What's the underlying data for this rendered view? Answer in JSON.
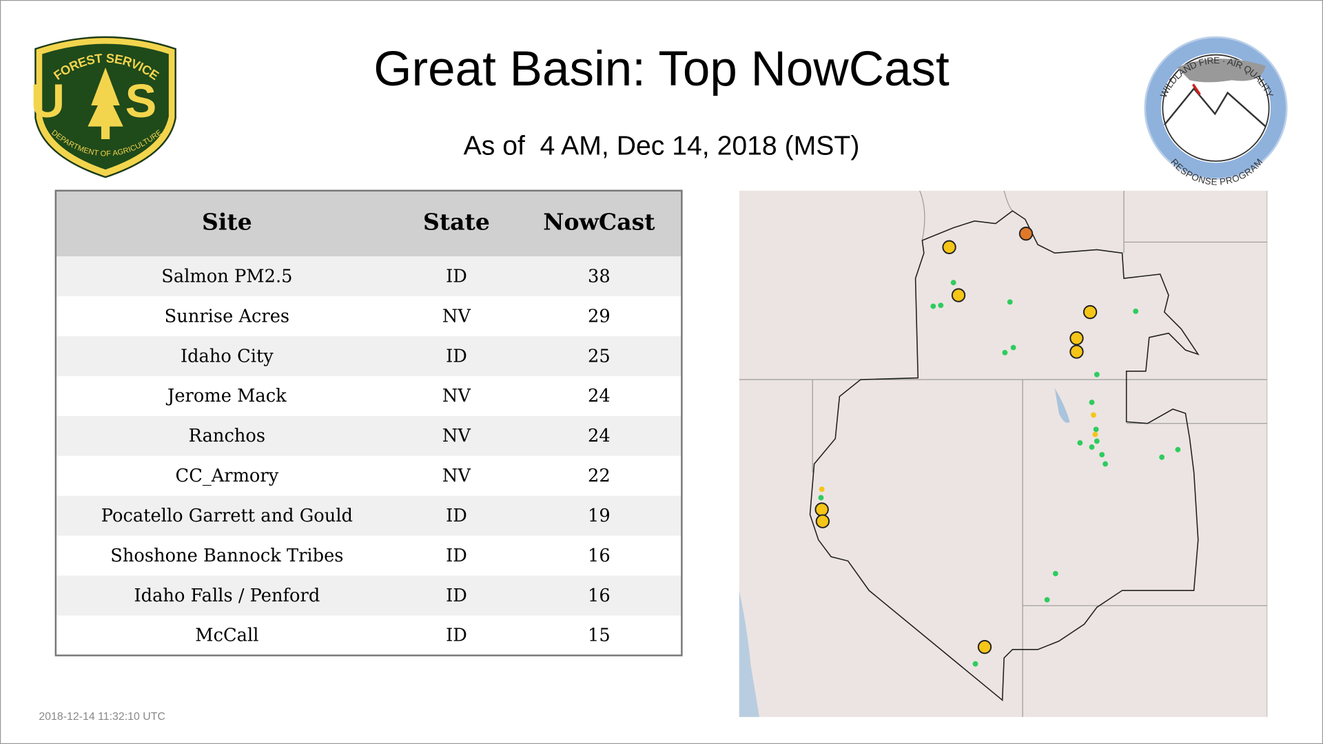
{
  "header": {
    "title": "Great Basin: Top NowCast",
    "subtitle": "As of  4 AM, Dec 14, 2018 (MST)"
  },
  "logos": {
    "forest_service": {
      "top": "FOREST SERVICE",
      "letters": "U S",
      "bottom": "DEPARTMENT OF AGRICULTURE"
    },
    "wildland": {
      "top": "WILDLAND FIRE · AIR QUALITY",
      "bottom": "RESPONSE PROGRAM"
    }
  },
  "table": {
    "header": [
      "Site",
      "State",
      "NowCast"
    ],
    "rows": [
      [
        "Salmon PM2.5",
        "ID",
        "38"
      ],
      [
        "Sunrise Acres",
        "NV",
        "29"
      ],
      [
        "Idaho City",
        "ID",
        "25"
      ],
      [
        "Jerome Mack",
        "NV",
        "24"
      ],
      [
        "Ranchos",
        "NV",
        "24"
      ],
      [
        "CC_Armory",
        "NV",
        "22"
      ],
      [
        "Pocatello Garrett and Gould",
        "ID",
        "19"
      ],
      [
        "Shoshone Bannock Tribes",
        "ID",
        "16"
      ],
      [
        "Idaho Falls / Penford",
        "ID",
        "16"
      ],
      [
        "McCall",
        "ID",
        "15"
      ]
    ]
  },
  "footer": {
    "timestamp": "2018-12-14 11:32:10 UTC"
  }
}
